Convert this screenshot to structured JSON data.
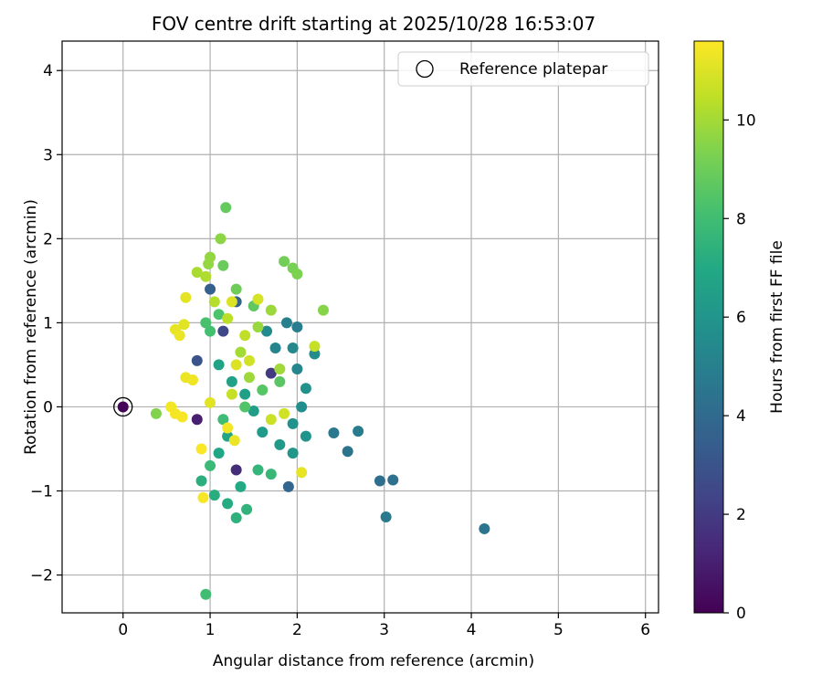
{
  "chart_data": {
    "type": "scatter",
    "title": "FOV centre drift starting at 2025/10/28 16:53:07",
    "xlabel": "Angular distance from reference (arcmin)",
    "ylabel": "Rotation from reference (arcmin)",
    "xlim": [
      -0.7,
      6.15
    ],
    "ylim": [
      -2.45,
      4.35
    ],
    "xticks": [
      0,
      1,
      2,
      3,
      4,
      5,
      6
    ],
    "yticks": [
      -2,
      -1,
      0,
      1,
      2,
      3,
      4
    ],
    "grid": true,
    "legend": {
      "position": "top-right",
      "entries": [
        "Reference platepar"
      ]
    },
    "reference_point": {
      "x": 0,
      "y": 0
    },
    "colorbar": {
      "label": "Hours from first FF file",
      "range": [
        0,
        11.6
      ],
      "ticks": [
        0,
        2,
        4,
        6,
        8,
        10
      ],
      "colormap": "viridis"
    },
    "points": [
      {
        "x": 0.0,
        "y": 0.0,
        "h": 0.1
      },
      {
        "x": 0.85,
        "y": -0.15,
        "h": 1.0
      },
      {
        "x": 1.3,
        "y": -0.75,
        "h": 1.5
      },
      {
        "x": 1.7,
        "y": 0.4,
        "h": 2.0
      },
      {
        "x": 1.15,
        "y": 0.9,
        "h": 2.5
      },
      {
        "x": 0.85,
        "y": 0.55,
        "h": 3.0
      },
      {
        "x": 1.0,
        "y": 1.4,
        "h": 3.5
      },
      {
        "x": 1.3,
        "y": 1.25,
        "h": 3.6
      },
      {
        "x": 1.9,
        "y": -0.95,
        "h": 3.8
      },
      {
        "x": 2.95,
        "y": -0.88,
        "h": 4.2
      },
      {
        "x": 3.1,
        "y": -0.87,
        "h": 4.3
      },
      {
        "x": 4.15,
        "y": -1.45,
        "h": 4.5
      },
      {
        "x": 3.02,
        "y": -1.31,
        "h": 4.7
      },
      {
        "x": 2.58,
        "y": -0.53,
        "h": 4.4
      },
      {
        "x": 2.42,
        "y": -0.31,
        "h": 4.6
      },
      {
        "x": 2.7,
        "y": -0.29,
        "h": 4.8
      },
      {
        "x": 2.0,
        "y": 0.95,
        "h": 4.9
      },
      {
        "x": 1.88,
        "y": 1.0,
        "h": 5.0
      },
      {
        "x": 1.75,
        "y": 0.7,
        "h": 5.2
      },
      {
        "x": 1.95,
        "y": 0.7,
        "h": 5.4
      },
      {
        "x": 1.65,
        "y": 0.9,
        "h": 5.5
      },
      {
        "x": 2.2,
        "y": 0.63,
        "h": 5.6
      },
      {
        "x": 2.0,
        "y": 0.45,
        "h": 5.3
      },
      {
        "x": 2.1,
        "y": 0.22,
        "h": 5.8
      },
      {
        "x": 2.05,
        "y": 0.0,
        "h": 5.7
      },
      {
        "x": 1.95,
        "y": -0.2,
        "h": 5.9
      },
      {
        "x": 2.1,
        "y": -0.35,
        "h": 6.0
      },
      {
        "x": 1.95,
        "y": -0.55,
        "h": 6.1
      },
      {
        "x": 1.8,
        "y": -0.45,
        "h": 6.2
      },
      {
        "x": 1.6,
        "y": -0.3,
        "h": 6.3
      },
      {
        "x": 1.5,
        "y": -0.05,
        "h": 6.4
      },
      {
        "x": 1.4,
        "y": 0.15,
        "h": 6.5
      },
      {
        "x": 1.25,
        "y": 0.3,
        "h": 6.6
      },
      {
        "x": 1.1,
        "y": 0.5,
        "h": 6.7
      },
      {
        "x": 1.2,
        "y": -0.35,
        "h": 6.8
      },
      {
        "x": 1.1,
        "y": -0.55,
        "h": 6.9
      },
      {
        "x": 1.35,
        "y": -0.95,
        "h": 7.0
      },
      {
        "x": 1.2,
        "y": -1.15,
        "h": 7.1
      },
      {
        "x": 1.05,
        "y": -1.05,
        "h": 7.2
      },
      {
        "x": 0.9,
        "y": -0.88,
        "h": 7.3
      },
      {
        "x": 1.3,
        "y": -1.32,
        "h": 7.4
      },
      {
        "x": 1.42,
        "y": -1.22,
        "h": 7.5
      },
      {
        "x": 1.55,
        "y": -0.75,
        "h": 7.6
      },
      {
        "x": 1.7,
        "y": -0.8,
        "h": 7.7
      },
      {
        "x": 1.0,
        "y": -0.7,
        "h": 7.8
      },
      {
        "x": 1.15,
        "y": -0.15,
        "h": 7.9
      },
      {
        "x": 0.95,
        "y": -2.23,
        "h": 8.0
      },
      {
        "x": 1.0,
        "y": 0.9,
        "h": 8.1
      },
      {
        "x": 0.95,
        "y": 1.0,
        "h": 8.2
      },
      {
        "x": 1.1,
        "y": 1.1,
        "h": 8.3
      },
      {
        "x": 1.4,
        "y": 0.0,
        "h": 8.4
      },
      {
        "x": 1.6,
        "y": 0.2,
        "h": 8.5
      },
      {
        "x": 1.8,
        "y": 0.3,
        "h": 8.6
      },
      {
        "x": 1.5,
        "y": 1.2,
        "h": 8.7
      },
      {
        "x": 1.18,
        "y": 2.37,
        "h": 8.8
      },
      {
        "x": 1.15,
        "y": 1.68,
        "h": 8.9
      },
      {
        "x": 1.3,
        "y": 1.4,
        "h": 9.0
      },
      {
        "x": 1.85,
        "y": 1.73,
        "h": 9.1
      },
      {
        "x": 1.95,
        "y": 1.65,
        "h": 9.2
      },
      {
        "x": 2.0,
        "y": 1.58,
        "h": 9.3
      },
      {
        "x": 0.38,
        "y": -0.08,
        "h": 9.4
      },
      {
        "x": 2.3,
        "y": 1.15,
        "h": 9.5
      },
      {
        "x": 1.12,
        "y": 2.0,
        "h": 9.6
      },
      {
        "x": 1.0,
        "y": 1.78,
        "h": 9.7
      },
      {
        "x": 0.98,
        "y": 1.7,
        "h": 9.75
      },
      {
        "x": 1.55,
        "y": 0.95,
        "h": 9.8
      },
      {
        "x": 1.7,
        "y": 1.15,
        "h": 9.85
      },
      {
        "x": 1.45,
        "y": 0.35,
        "h": 9.9
      },
      {
        "x": 1.8,
        "y": 0.45,
        "h": 9.95
      },
      {
        "x": 1.35,
        "y": 0.65,
        "h": 10.0
      },
      {
        "x": 0.85,
        "y": 1.6,
        "h": 10.1
      },
      {
        "x": 0.95,
        "y": 1.55,
        "h": 10.2
      },
      {
        "x": 1.05,
        "y": 1.25,
        "h": 10.3
      },
      {
        "x": 1.2,
        "y": 1.05,
        "h": 10.4
      },
      {
        "x": 1.4,
        "y": 0.85,
        "h": 10.5
      },
      {
        "x": 2.2,
        "y": 0.72,
        "h": 10.6
      },
      {
        "x": 1.7,
        "y": -0.15,
        "h": 10.7
      },
      {
        "x": 1.85,
        "y": -0.08,
        "h": 10.8
      },
      {
        "x": 1.55,
        "y": 1.28,
        "h": 10.9
      },
      {
        "x": 1.3,
        "y": 0.5,
        "h": 11.0
      },
      {
        "x": 0.7,
        "y": 0.98,
        "h": 11.1
      },
      {
        "x": 0.72,
        "y": 1.3,
        "h": 11.15
      },
      {
        "x": 0.6,
        "y": 0.92,
        "h": 11.2
      },
      {
        "x": 0.65,
        "y": 0.85,
        "h": 11.25
      },
      {
        "x": 0.72,
        "y": 0.35,
        "h": 11.3
      },
      {
        "x": 0.8,
        "y": 0.32,
        "h": 11.35
      },
      {
        "x": 0.55,
        "y": 0.0,
        "h": 11.4
      },
      {
        "x": 0.6,
        "y": -0.08,
        "h": 11.45
      },
      {
        "x": 0.68,
        "y": -0.12,
        "h": 11.5
      },
      {
        "x": 0.9,
        "y": -0.5,
        "h": 11.55
      },
      {
        "x": 0.92,
        "y": -1.08,
        "h": 11.5
      },
      {
        "x": 1.2,
        "y": -0.25,
        "h": 11.4
      },
      {
        "x": 1.28,
        "y": -0.4,
        "h": 11.3
      },
      {
        "x": 2.05,
        "y": -0.78,
        "h": 11.2
      },
      {
        "x": 1.0,
        "y": 0.05,
        "h": 11.1
      },
      {
        "x": 1.25,
        "y": 1.25,
        "h": 11.0
      },
      {
        "x": 1.45,
        "y": 0.55,
        "h": 10.8
      },
      {
        "x": 1.25,
        "y": 0.15,
        "h": 10.6
      }
    ]
  }
}
